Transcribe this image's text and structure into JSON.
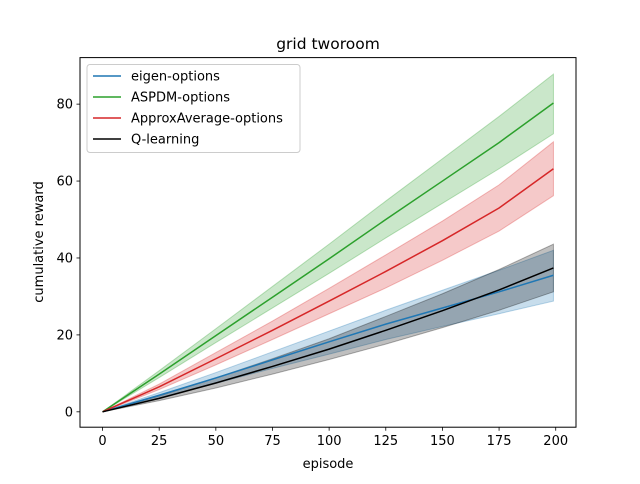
{
  "chart_data": {
    "type": "line",
    "title": "grid  tworoom",
    "xlabel": "episode",
    "ylabel": "cumulative reward",
    "xlim": [
      -9.95,
      208.95
    ],
    "ylim": [
      -4.0,
      92.1
    ],
    "xticks": [
      0,
      25,
      50,
      75,
      100,
      125,
      150,
      175,
      200
    ],
    "yticks": [
      0,
      20,
      40,
      60,
      80
    ],
    "grid": false,
    "legend_position": "top-left",
    "x": [
      0,
      25,
      50,
      75,
      100,
      125,
      150,
      175,
      199
    ],
    "series": [
      {
        "name": "eigen-options",
        "color": "#1f77b4",
        "values": [
          0.0,
          4.3,
          8.8,
          13.5,
          18.2,
          22.8,
          27.0,
          31.2,
          35.5
        ],
        "lower": [
          0.0,
          3.6,
          7.4,
          11.3,
          15.0,
          18.8,
          22.2,
          25.5,
          28.8
        ],
        "upper": [
          0.0,
          5.0,
          10.2,
          15.6,
          21.0,
          26.4,
          31.6,
          36.8,
          42.0
        ]
      },
      {
        "name": "ASPDM-options",
        "color": "#2ca02c",
        "values": [
          0.0,
          9.8,
          19.8,
          29.8,
          39.8,
          50.0,
          60.0,
          70.0,
          80.3
        ],
        "lower": [
          0.0,
          8.9,
          18.0,
          27.0,
          36.0,
          45.2,
          54.2,
          63.2,
          72.3
        ],
        "upper": [
          0.0,
          10.7,
          21.6,
          32.6,
          43.6,
          54.8,
          65.8,
          76.8,
          87.8
        ]
      },
      {
        "name": "ApproxAverage-options",
        "color": "#d62728",
        "values": [
          0.0,
          6.5,
          13.8,
          21.2,
          28.8,
          36.5,
          44.5,
          53.0,
          63.2
        ],
        "lower": [
          0.0,
          5.8,
          12.2,
          18.8,
          25.5,
          32.2,
          39.4,
          47.0,
          56.2
        ],
        "upper": [
          0.0,
          7.2,
          15.4,
          23.6,
          32.1,
          40.8,
          49.6,
          59.0,
          70.2
        ]
      },
      {
        "name": "Q-learning",
        "color": "#000000",
        "values": [
          0.0,
          3.5,
          7.5,
          11.8,
          16.3,
          21.2,
          26.3,
          31.7,
          37.4
        ],
        "lower": [
          0.0,
          2.9,
          6.2,
          9.8,
          13.6,
          17.6,
          21.9,
          26.4,
          31.2
        ],
        "upper": [
          0.0,
          4.1,
          8.8,
          13.8,
          19.0,
          24.8,
          30.7,
          37.0,
          43.6
        ]
      }
    ]
  }
}
